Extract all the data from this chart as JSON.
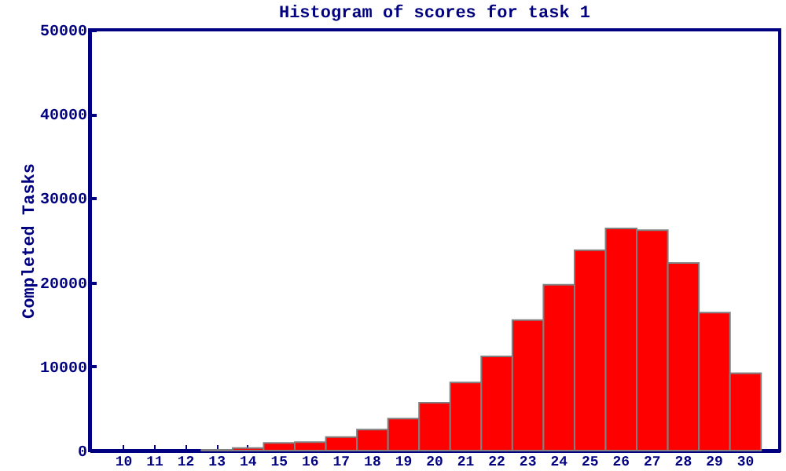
{
  "chart_data": {
    "type": "bar",
    "title": "Histogram of scores for task 1",
    "ylabel": "Completed Tasks",
    "categories": [
      "10",
      "11",
      "12",
      "13",
      "14",
      "15",
      "16",
      "17",
      "18",
      "19",
      "20",
      "21",
      "22",
      "23",
      "24",
      "25",
      "26",
      "27",
      "28",
      "29",
      "30"
    ],
    "values": [
      null,
      null,
      null,
      100,
      300,
      900,
      1000,
      1600,
      2500,
      3800,
      5700,
      8100,
      11200,
      15500,
      19700,
      23800,
      26400,
      26200,
      22300,
      16400,
      9200
    ],
    "color": "#ff0000",
    "ylim": [
      0,
      50000
    ],
    "yticks": [
      0,
      10000,
      20000,
      30000,
      40000,
      50000
    ],
    "grid": false
  }
}
